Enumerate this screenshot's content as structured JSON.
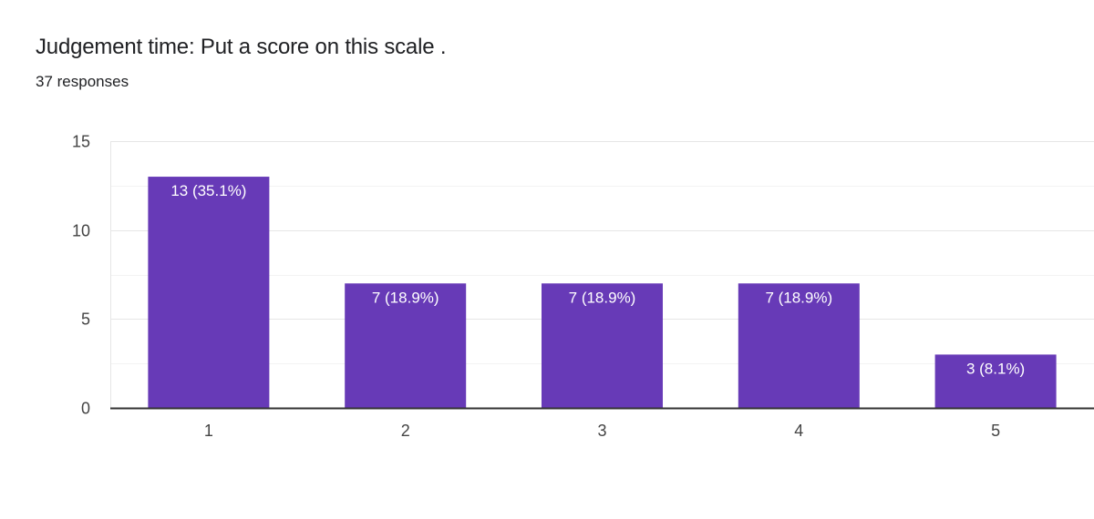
{
  "header": {
    "title": "Judgement time: Put a score on this scale .",
    "responses": "37 responses"
  },
  "colors": {
    "bar": "#673ab7",
    "grid": "#e6e6e6",
    "baseline": "#333333"
  },
  "chart_data": {
    "type": "bar",
    "categories": [
      "1",
      "2",
      "3",
      "4",
      "5"
    ],
    "values": [
      13,
      7,
      7,
      7,
      3
    ],
    "data_labels": [
      "13 (35.1%)",
      "7 (18.9%)",
      "7 (18.9%)",
      "7 (18.9%)",
      "3 (8.1%)"
    ],
    "title": "Judgement time: Put a score on this scale .",
    "xlabel": "",
    "ylabel": "",
    "ylim": [
      0,
      15
    ],
    "yticks": [
      0,
      5,
      10,
      15
    ],
    "minor_grid_step": 2.5,
    "grid": true,
    "legend": "none"
  }
}
